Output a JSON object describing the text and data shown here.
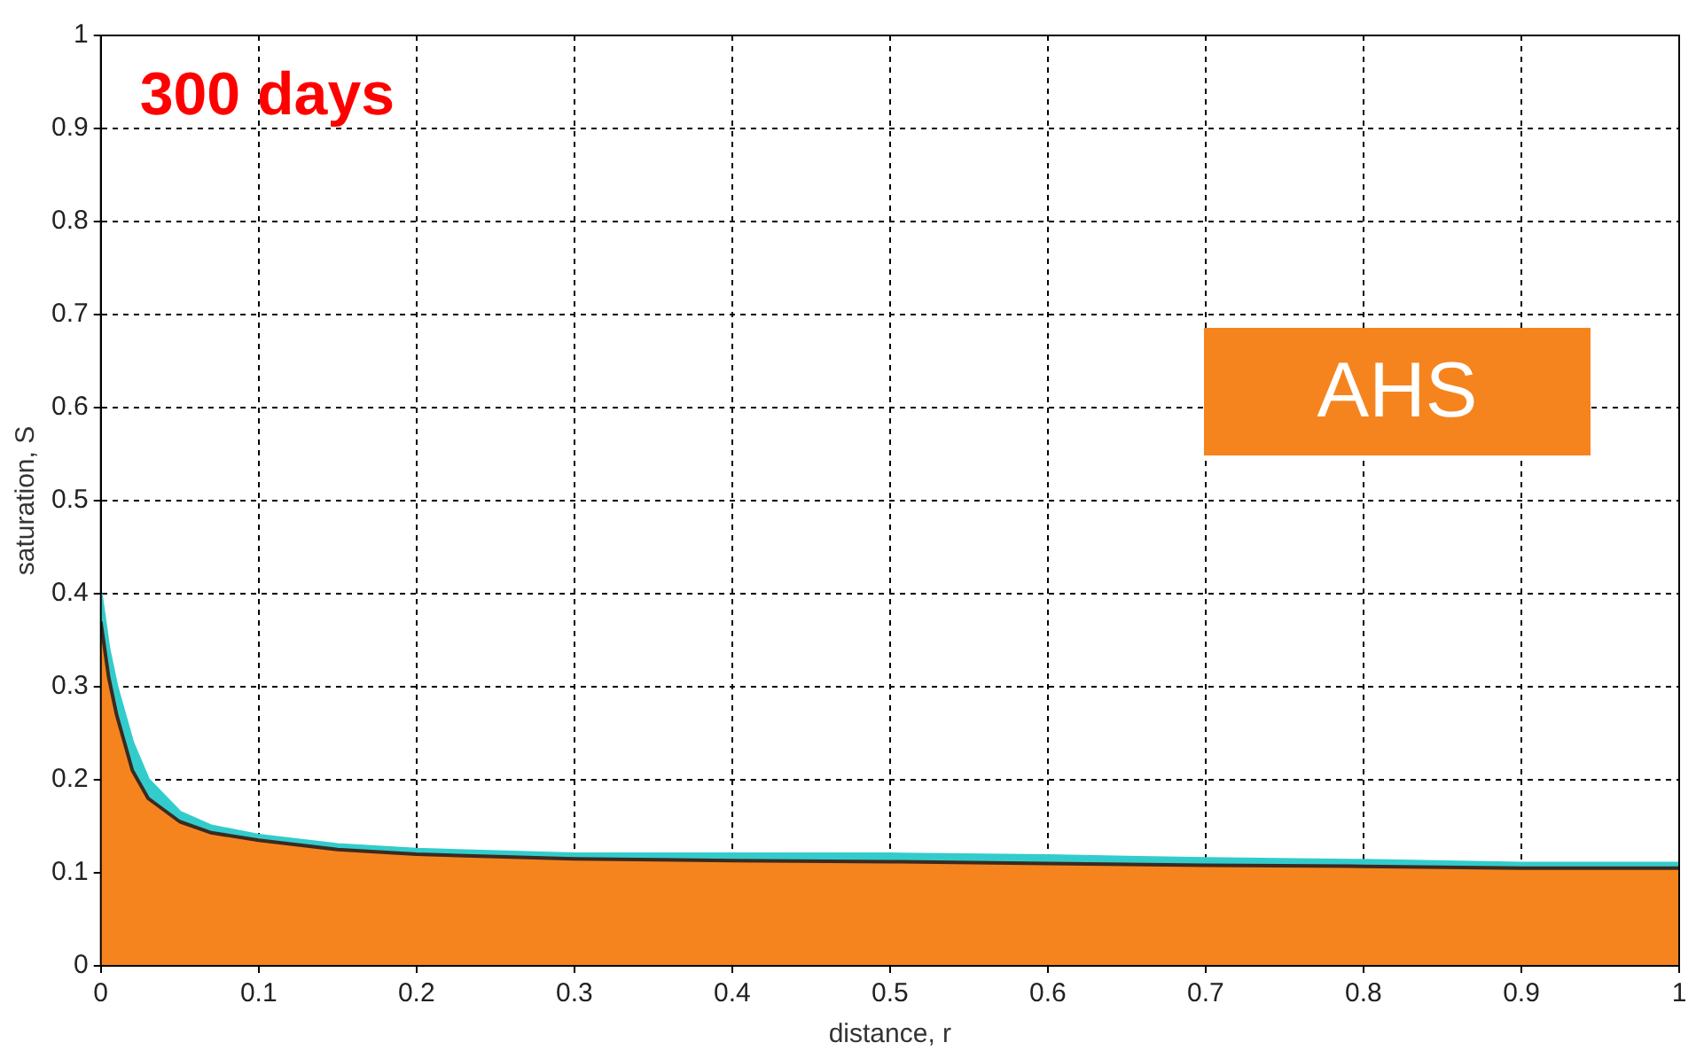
{
  "chart_data": {
    "type": "area",
    "xlabel": "distance, r",
    "ylabel": "saturation, S",
    "annotations": [
      "300 days"
    ],
    "xlim": [
      0,
      1
    ],
    "ylim": [
      0,
      1
    ],
    "xticks": [
      0,
      0.1,
      0.2,
      0.3,
      0.4,
      0.5,
      0.6,
      0.7,
      0.8,
      0.9,
      1
    ],
    "yticks": [
      0,
      0.1,
      0.2,
      0.3,
      0.4,
      0.5,
      0.6,
      0.7,
      0.8,
      0.9,
      1
    ],
    "grid": true,
    "legend": "top right",
    "line_style": "dashed",
    "series": [
      {
        "color": "#33cccc",
        "x": [
          0,
          0.005,
          0.01,
          0.02,
          0.03,
          0.05,
          0.07,
          0.1,
          0.15,
          0.2,
          0.3,
          0.4,
          0.5,
          0.6,
          0.7,
          0.8,
          0.9,
          1
        ],
        "values": [
          0.4,
          0.34,
          0.3,
          0.24,
          0.2,
          0.165,
          0.15,
          0.14,
          0.13,
          0.125,
          0.12,
          0.12,
          0.12,
          0.118,
          0.115,
          0.113,
          0.11,
          0.11
        ]
      },
      {
        "name": "AHS",
        "color": "#f5841f",
        "x": [
          0,
          0.005,
          0.01,
          0.02,
          0.03,
          0.05,
          0.07,
          0.1,
          0.15,
          0.2,
          0.3,
          0.4,
          0.5,
          0.6,
          0.7,
          0.8,
          0.9,
          1
        ],
        "values": [
          0.37,
          0.31,
          0.27,
          0.21,
          0.18,
          0.155,
          0.143,
          0.135,
          0.125,
          0.12,
          0.115,
          0.113,
          0.112,
          0.11,
          0.108,
          0.107,
          0.105,
          0.105
        ]
      }
    ]
  }
}
